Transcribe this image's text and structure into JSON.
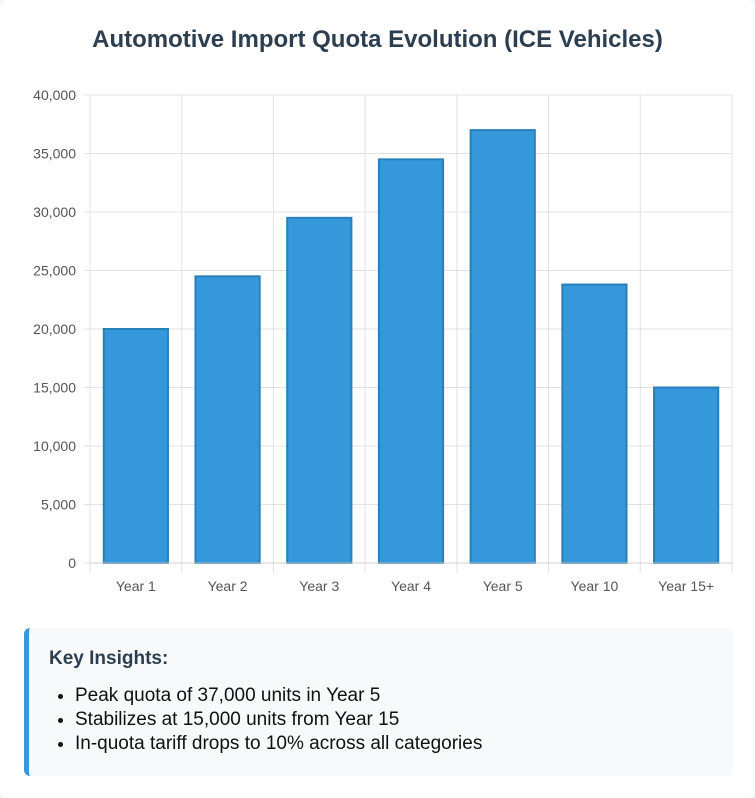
{
  "title": "Automotive Import Quota Evolution (ICE Vehicles)",
  "chart_data": {
    "type": "bar",
    "title": "Automotive Import Quota Evolution (ICE Vehicles)",
    "categories": [
      "Year 1",
      "Year 2",
      "Year 3",
      "Year 4",
      "Year 5",
      "Year 10",
      "Year 15+"
    ],
    "values": [
      20000,
      24500,
      29500,
      34500,
      37000,
      23800,
      15000
    ],
    "ylim": [
      0,
      40000
    ],
    "yticks": [
      0,
      5000,
      10000,
      15000,
      20000,
      25000,
      30000,
      35000,
      40000
    ],
    "ytick_labels": [
      "0",
      "5,000",
      "10,000",
      "15,000",
      "20,000",
      "25,000",
      "30,000",
      "35,000",
      "40,000"
    ],
    "grid": true,
    "legend": false,
    "bar_color": "#3498db",
    "bar_border_color": "#2980b9"
  },
  "insights": {
    "title": "Key Insights:",
    "items": [
      "Peak quota of 37,000 units in Year 5",
      "Stabilizes at 15,000 units from Year 15",
      "In-quota tariff drops to 10% across all categories"
    ],
    "accent_color": "#3498db"
  }
}
